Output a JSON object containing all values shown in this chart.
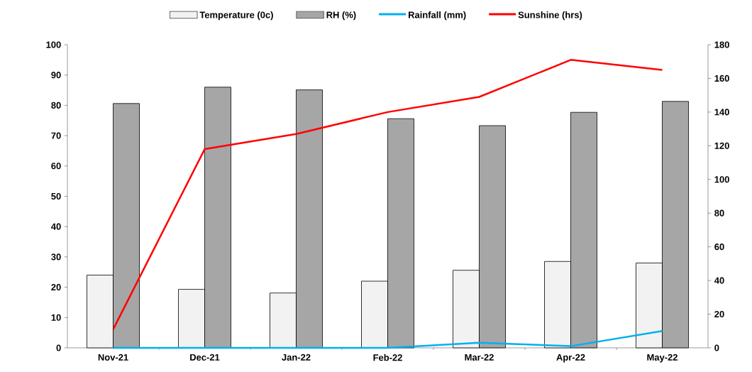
{
  "chart_data": {
    "type": "bar",
    "categories": [
      "Nov-21",
      "Dec-21",
      "Jan-22",
      "Feb-22",
      "Mar-22",
      "Apr-22",
      "May-22"
    ],
    "series": [
      {
        "name": "Temperature (0c)",
        "color": "#f2f2f2",
        "values": [
          24,
          19.3,
          18.1,
          22,
          25.6,
          28.5,
          28
        ]
      },
      {
        "name": "RH (%)",
        "color": "#a6a6a6",
        "values": [
          80.6,
          86,
          85.1,
          75.6,
          73.3,
          77.7,
          81.3
        ]
      },
      {
        "name": "Rainfall (mm)",
        "type": "line",
        "axis": "y2",
        "color": "#00b0f0",
        "values": [
          0,
          0,
          0,
          0,
          3,
          1,
          10
        ]
      },
      {
        "name": "Sunshine (hrs)",
        "type": "line",
        "axis": "y2",
        "color": "#ff0000",
        "values": [
          11,
          118,
          127,
          140,
          149,
          171,
          165
        ]
      }
    ],
    "ylim": [
      0,
      100
    ],
    "yticks": [
      0,
      10,
      20,
      30,
      40,
      50,
      60,
      70,
      80,
      90,
      100
    ],
    "y2lim": [
      0,
      180
    ],
    "y2ticks": [
      0,
      20,
      40,
      60,
      80,
      100,
      120,
      140,
      160,
      180
    ],
    "legend": "top"
  }
}
